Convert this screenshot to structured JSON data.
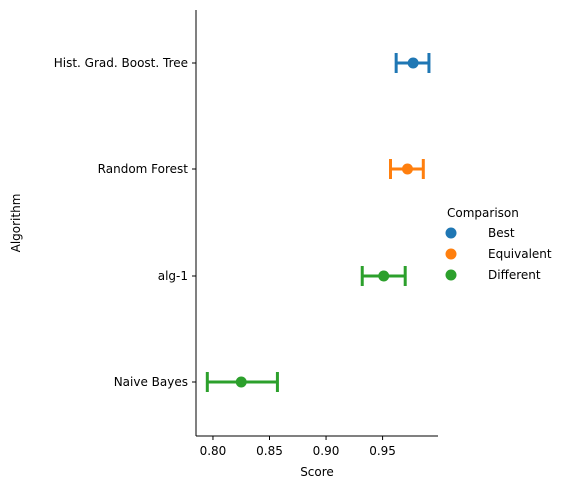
{
  "chart_data": {
    "type": "pointplot",
    "xlabel": "Score",
    "ylabel": "Algorithm",
    "xlim": [
      0.785,
      0.999
    ],
    "xticks": [
      "0.80",
      "0.85",
      "0.90",
      "0.95"
    ],
    "xtick_values": [
      0.8,
      0.85,
      0.9,
      0.95
    ],
    "categories": [
      "Hist. Grad. Boost. Tree",
      "Random Forest",
      "alg-1",
      "Naive Bayes"
    ],
    "points": [
      {
        "algorithm": "Hist. Grad. Boost. Tree",
        "comparison": "Best",
        "mean": 0.977,
        "ci_low": 0.962,
        "ci_high": 0.991
      },
      {
        "algorithm": "Random Forest",
        "comparison": "Equivalent",
        "mean": 0.972,
        "ci_low": 0.957,
        "ci_high": 0.986
      },
      {
        "algorithm": "alg-1",
        "comparison": "Different",
        "mean": 0.951,
        "ci_low": 0.932,
        "ci_high": 0.97
      },
      {
        "algorithm": "Naive Bayes",
        "comparison": "Different",
        "mean": 0.825,
        "ci_low": 0.795,
        "ci_high": 0.857
      }
    ],
    "legend": {
      "title": "Comparison",
      "position": "right",
      "items": [
        {
          "label": "Best",
          "color": "#1f77b4"
        },
        {
          "label": "Equivalent",
          "color": "#ff7f0e"
        },
        {
          "label": "Different",
          "color": "#2ca02c"
        }
      ]
    },
    "grid": false
  }
}
